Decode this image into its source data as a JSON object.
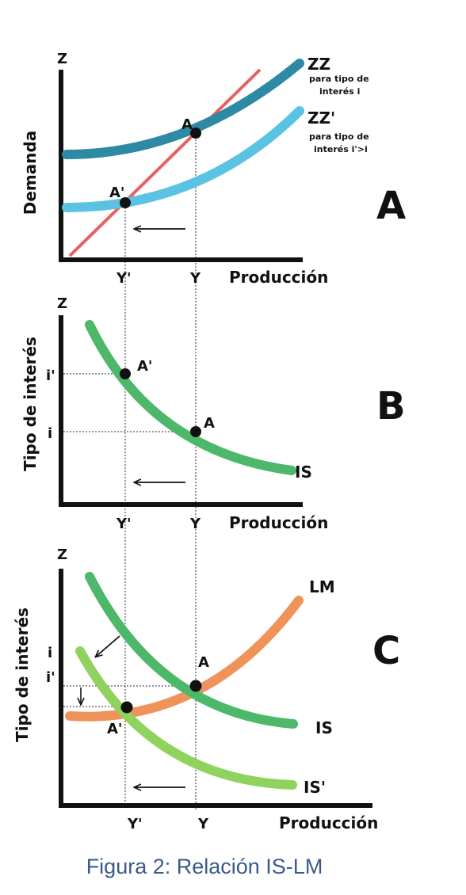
{
  "panels": {
    "a": {
      "letter": "A",
      "y_axis_top": "Z",
      "y_label": "Demanda",
      "x_label": "Producción",
      "x_ticks": {
        "y_prime": "Y'",
        "y": "Y"
      },
      "zz_label": "ZZ",
      "zz_note_1": "para tipo de",
      "zz_note_2": "interés i",
      "zzp_label": "ZZ'",
      "zzp_note_1": "para tipo de",
      "zzp_note_2": "interés i'>i",
      "point_a": "A",
      "point_ap": "A'"
    },
    "b": {
      "letter": "B",
      "y_axis_top": "Z",
      "y_label": "Tipo de interés",
      "x_label": "Producción",
      "x_ticks": {
        "y_prime": "Y'",
        "y": "Y"
      },
      "y_ticks": {
        "i_prime": "i'",
        "i": "i"
      },
      "curve_is": "IS",
      "point_a": "A",
      "point_ap": "A'"
    },
    "c": {
      "letter": "C",
      "y_axis_top": "Z",
      "y_label": "Tipo de interés",
      "x_label": "Producción",
      "x_ticks": {
        "y_prime": "Y'",
        "y": "Y"
      },
      "y_ticks": {
        "i": "i",
        "i_prime": "i'"
      },
      "curve_lm": "LM",
      "curve_is": "IS",
      "curve_isp": "IS'",
      "point_a": "A",
      "point_ap": "A'"
    }
  },
  "caption": "Figura 2: Relación IS-LM",
  "colors": {
    "zz": "#2e8aa4",
    "zzp": "#5ac2e2",
    "line45": "#e8615f",
    "is": "#4db86a",
    "isp": "#8fd35e",
    "lm": "#f0935a",
    "axis": "#111111",
    "caption": "#3a5a8c"
  }
}
